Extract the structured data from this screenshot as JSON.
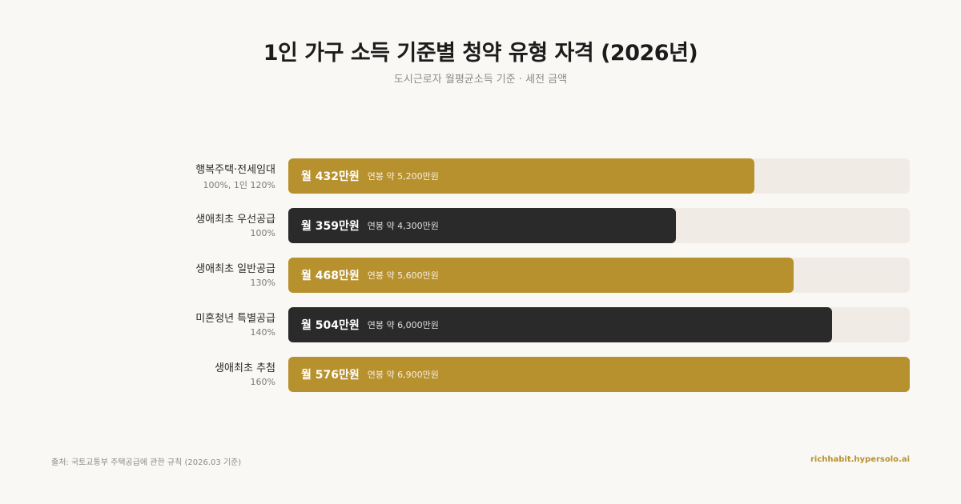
{
  "header": {
    "title": "1인 가구 소득 기준별 청약 유형 자격 (2026년)",
    "subtitle": "도시근로자 월평균소득 기준 · 세전 금액"
  },
  "colors": {
    "gold": "#b8912f",
    "dark": "#2a2a2a",
    "track": "#f0ece5"
  },
  "chart_data": {
    "type": "bar",
    "orientation": "horizontal",
    "xlim": [
      0,
      576
    ],
    "unit": "만원",
    "categories": [
      "행복주택·전세임대",
      "생애최초 우선공급",
      "생애최초 일반공급",
      "미혼청년 특별공급",
      "생애최초 추첨"
    ],
    "values": [
      432,
      359,
      468,
      504,
      576
    ],
    "rows": [
      {
        "label": "행복주택·전세임대",
        "sub": "100%, 1인 120%",
        "monthly": "월 432만원",
        "annual": "연봉 약 5,200만원",
        "value": 432,
        "color": "gold"
      },
      {
        "label": "생애최초 우선공급",
        "sub": "100%",
        "monthly": "월 359만원",
        "annual": "연봉 약 4,300만원",
        "value": 359,
        "color": "dark"
      },
      {
        "label": "생애최초 일반공급",
        "sub": "130%",
        "monthly": "월 468만원",
        "annual": "연봉 약 5,600만원",
        "value": 468,
        "color": "gold"
      },
      {
        "label": "미혼청년 특별공급",
        "sub": "140%",
        "monthly": "월 504만원",
        "annual": "연봉 약 6,000만원",
        "value": 504,
        "color": "dark"
      },
      {
        "label": "생애최초 추첨",
        "sub": "160%",
        "monthly": "월 576만원",
        "annual": "연봉 약 6,900만원",
        "value": 576,
        "color": "gold"
      }
    ]
  },
  "footer": {
    "source": "출처: 국토교통부 주택공급에 관한 규칙 (2026.03 기준)",
    "site": "richhabit.hypersolo.ai"
  }
}
